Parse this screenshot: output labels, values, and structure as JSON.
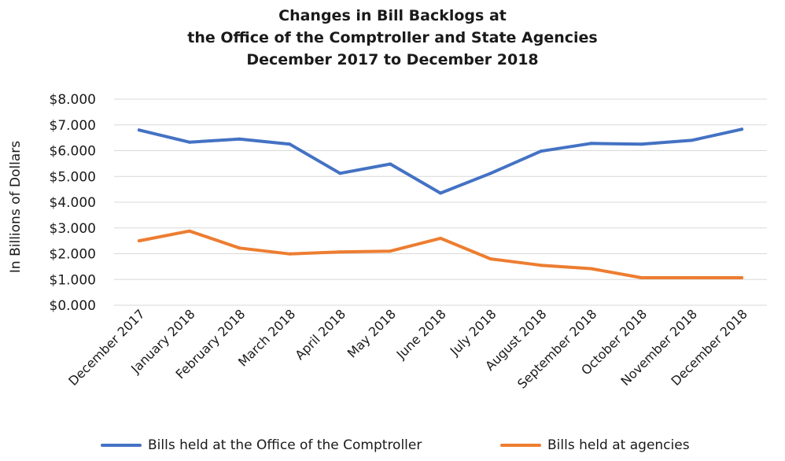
{
  "chart_data": {
    "type": "line",
    "title_lines": [
      "Changes in Bill Backlogs at",
      "the Office of the Comptroller and State Agencies",
      "December 2017 to December 2018"
    ],
    "ylabel": "In Billions of Dollars",
    "xlabel": "",
    "ylim": [
      0,
      8
    ],
    "ytick_values": [
      0,
      1,
      2,
      3,
      4,
      5,
      6,
      7,
      8
    ],
    "ytick_labels": [
      "$0.000",
      "$1.000",
      "$2.000",
      "$3.000",
      "$4.000",
      "$5.000",
      "$6.000",
      "$7.000",
      "$8.000"
    ],
    "grid": true,
    "legend_position": "bottom",
    "categories": [
      "December 2017",
      "January 2018",
      "February 2018",
      "March 2018",
      "April 2018",
      "May 2018",
      "June 2018",
      "July 2018",
      "August 2018",
      "September 2018",
      "October 2018",
      "November 2018",
      "December 2018"
    ],
    "series": [
      {
        "name": "Bills held at the Office of the Comptroller",
        "color": "#4472C4",
        "values": [
          6.8,
          6.33,
          6.45,
          6.25,
          5.12,
          5.48,
          4.35,
          5.12,
          5.98,
          6.28,
          6.25,
          6.4,
          6.83
        ]
      },
      {
        "name": "Bills held at agencies",
        "color": "#ED7D31",
        "values": [
          2.5,
          2.88,
          2.22,
          1.99,
          2.07,
          2.1,
          2.6,
          1.8,
          1.55,
          1.42,
          1.07,
          1.07,
          1.07
        ]
      }
    ]
  }
}
